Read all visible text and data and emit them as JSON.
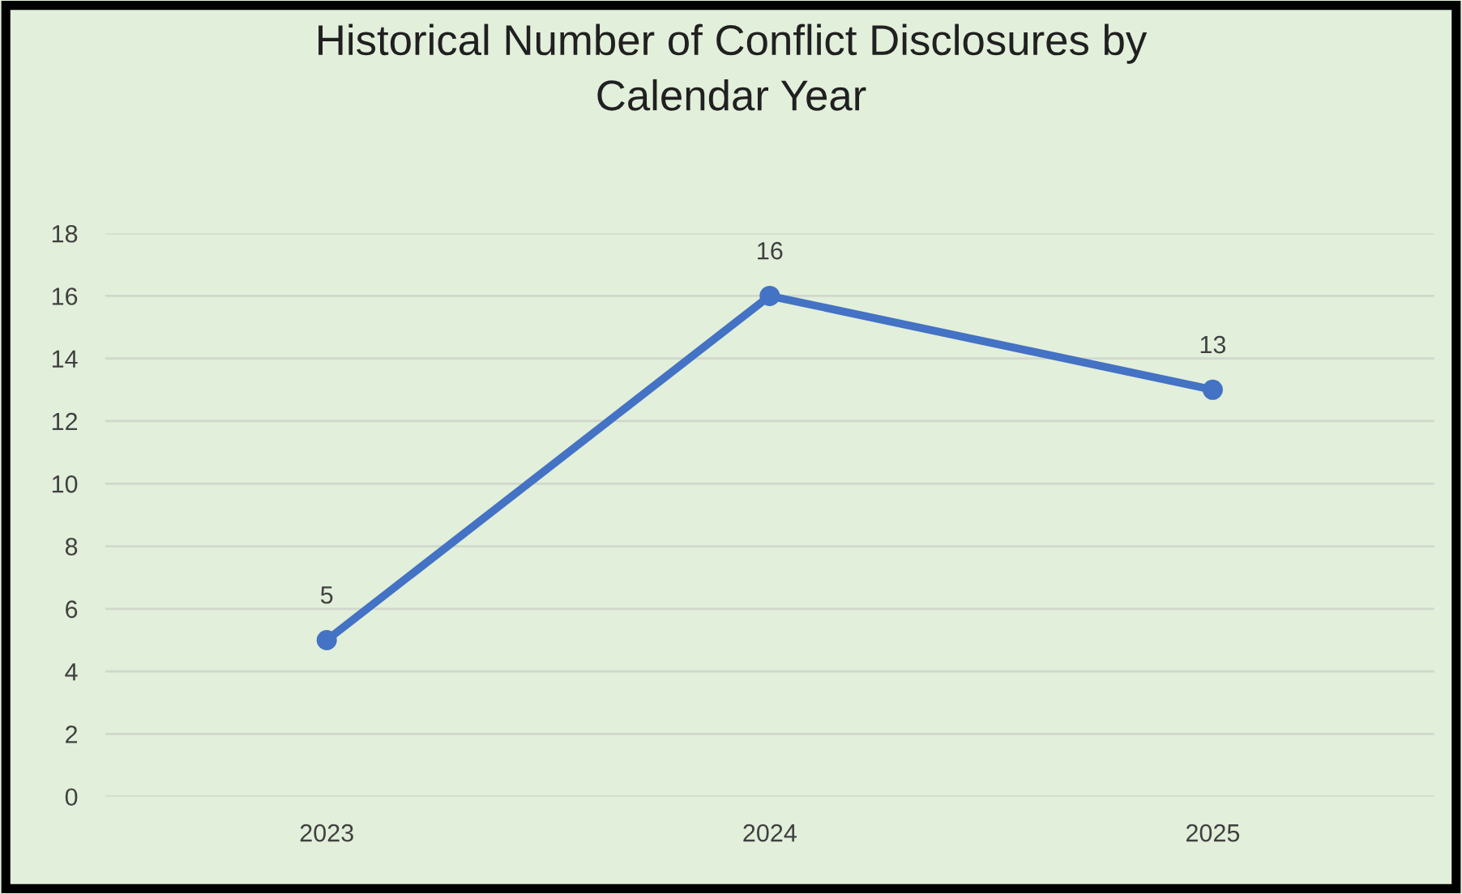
{
  "chart_data": {
    "type": "line",
    "title": "Historical Number of Conflict Disclosures by\nCalendar Year",
    "categories": [
      "2023",
      "2024",
      "2025"
    ],
    "series": [
      {
        "color": "#4472c4",
        "values": [
          5,
          16,
          13
        ]
      }
    ],
    "ylim": [
      0,
      18
    ],
    "yticks": [
      0,
      2,
      4,
      6,
      8,
      10,
      12,
      14,
      16,
      18
    ],
    "grid": "y",
    "marker": "circle",
    "line_style": "solid",
    "data_labels": true,
    "legend": false
  }
}
